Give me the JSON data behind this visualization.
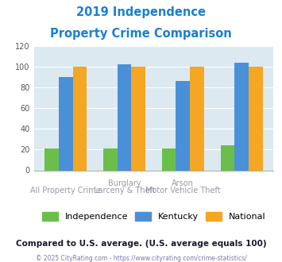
{
  "title_line1": "2019 Independence",
  "title_line2": "Property Crime Comparison",
  "groups": [
    {
      "independence": 21,
      "kentucky": 90,
      "national": 100
    },
    {
      "independence": 21,
      "kentucky": 102,
      "national": 100
    },
    {
      "independence": 21,
      "kentucky": 86,
      "national": 100
    },
    {
      "independence": 24,
      "kentucky": 104,
      "national": 100
    }
  ],
  "xlabel_top": [
    "",
    "Burglary",
    "Arson",
    ""
  ],
  "xlabel_bottom": [
    "All Property Crime",
    "Larceny & Theft",
    "Motor Vehicle Theft",
    ""
  ],
  "independence_color": "#6abf4b",
  "kentucky_color": "#4a90d9",
  "national_color": "#f5a623",
  "background_color": "#dce9f0",
  "title_color": "#1a7fd4",
  "xlabel_color": "#9999aa",
  "ylim": [
    0,
    120
  ],
  "yticks": [
    0,
    20,
    40,
    60,
    80,
    100,
    120
  ],
  "footer_text": "Compared to U.S. average. (U.S. average equals 100)",
  "copyright_text": "© 2025 CityRating.com - https://www.cityrating.com/crime-statistics/",
  "bar_width": 0.24
}
